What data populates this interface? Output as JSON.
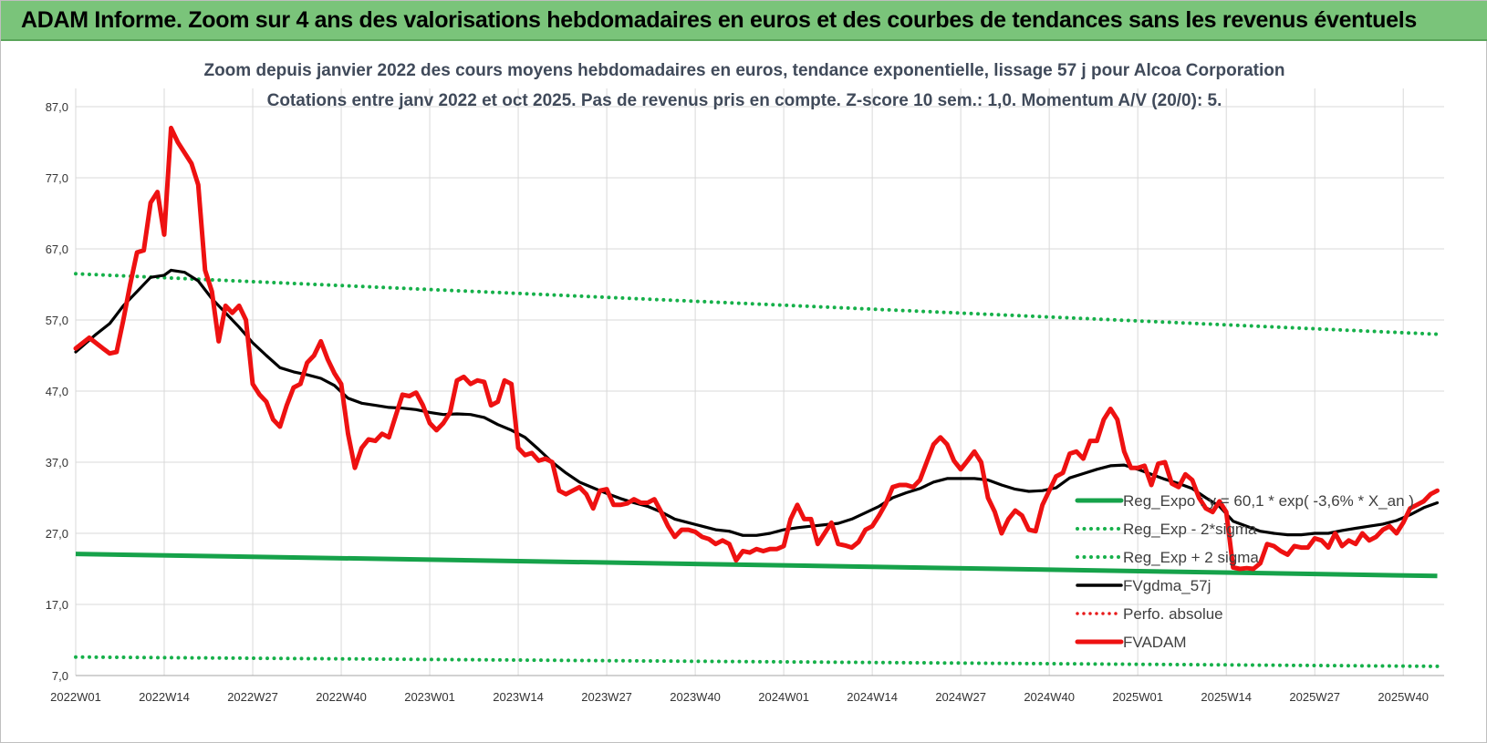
{
  "header": {
    "title": "ADAM Informe. Zoom sur 4 ans des valorisations hebdomadaires en euros et des courbes de tendances sans les revenus éventuels"
  },
  "chart_data": {
    "type": "line",
    "title": [
      "Zoom depuis janvier 2022 des cours moyens hebdomadaires en euros, tendance exponentielle, lissage 57 j pour Alcoa Corporation",
      "Cotations entre janv 2022 et oct 2025. Pas de revenus pris en compte. Z-score 10 sem.: 1,0. Momentum A/V (20/0): 5."
    ],
    "xlabel": "",
    "ylabel": "",
    "ylim": [
      7.0,
      87.0
    ],
    "y_ticks": [
      "7,0",
      "17,0",
      "27,0",
      "37,0",
      "47,0",
      "57,0",
      "67,0",
      "77,0",
      "87,0"
    ],
    "x_ticks": [
      "2022W01",
      "2022W14",
      "2022W27",
      "2022W40",
      "2023W01",
      "2023W14",
      "2023W27",
      "2023W40",
      "2024W01",
      "2024W14",
      "2024W27",
      "2024W40",
      "2025W01",
      "2025W14",
      "2025W27",
      "2025W40"
    ],
    "x_range_weeks": [
      0,
      201
    ],
    "grid": true,
    "legend_position": "right",
    "colors": {
      "fvadam": "#ee1111",
      "fvgdma": "#000000",
      "reg": "#16a24a",
      "sigma": "#16b04a",
      "perfo": "#e81a1a",
      "grid": "#d9d9d9"
    },
    "legend": [
      {
        "label": "Reg_Expo : y = 60,1 * exp( -3,6% *  X_an )",
        "style": "solid-green"
      },
      {
        "label": "Reg_Exp - 2*sigma",
        "style": "dotted-green"
      },
      {
        "label": "Reg_Exp + 2 sigma",
        "style": "dotted-green"
      },
      {
        "label": "FVgdma_57j",
        "style": "solid-black"
      },
      {
        "label": "Perfo. absolue",
        "style": "dotted-red"
      },
      {
        "label": "FVADAM",
        "style": "solid-red"
      }
    ],
    "series": [
      {
        "name": "FVADAM",
        "points": [
          [
            0,
            53
          ],
          [
            2,
            54.5
          ],
          [
            4,
            53
          ],
          [
            5,
            52.3
          ],
          [
            6,
            52.5
          ],
          [
            7,
            57
          ],
          [
            8,
            62
          ],
          [
            9,
            66.5
          ],
          [
            10,
            66.8
          ],
          [
            11,
            73.5
          ],
          [
            12,
            75
          ],
          [
            13,
            69
          ],
          [
            14,
            84
          ],
          [
            15,
            82
          ],
          [
            16,
            80.5
          ],
          [
            17,
            79
          ],
          [
            18,
            76
          ],
          [
            19,
            64
          ],
          [
            20,
            61
          ],
          [
            21,
            54
          ],
          [
            22,
            59
          ],
          [
            23,
            58
          ],
          [
            24,
            59
          ],
          [
            25,
            57
          ],
          [
            26,
            48
          ],
          [
            27,
            46.5
          ],
          [
            28,
            45.5
          ],
          [
            29,
            43
          ],
          [
            30,
            42
          ],
          [
            31,
            45
          ],
          [
            32,
            47.5
          ],
          [
            33,
            48
          ],
          [
            34,
            51
          ],
          [
            35,
            52
          ],
          [
            36,
            54
          ],
          [
            37,
            51.5
          ],
          [
            38,
            49.5
          ],
          [
            39,
            48
          ],
          [
            40,
            41
          ],
          [
            41,
            36.2
          ],
          [
            42,
            39
          ],
          [
            43,
            40.2
          ],
          [
            44,
            40
          ],
          [
            45,
            41
          ],
          [
            46,
            40.5
          ],
          [
            47,
            43.5
          ],
          [
            48,
            46.5
          ],
          [
            49,
            46.3
          ],
          [
            50,
            46.8
          ],
          [
            51,
            45
          ],
          [
            52,
            42.5
          ],
          [
            53,
            41.5
          ],
          [
            54,
            42.5
          ],
          [
            55,
            44
          ],
          [
            56,
            48.5
          ],
          [
            57,
            49
          ],
          [
            58,
            48
          ],
          [
            59,
            48.5
          ],
          [
            60,
            48.3
          ],
          [
            61,
            45
          ],
          [
            62,
            45.5
          ],
          [
            63,
            48.5
          ],
          [
            64,
            48
          ],
          [
            65,
            39
          ],
          [
            66,
            38
          ],
          [
            67,
            38.3
          ],
          [
            68,
            37.2
          ],
          [
            69,
            37.5
          ],
          [
            70,
            37
          ],
          [
            71,
            33
          ],
          [
            72,
            32.5
          ],
          [
            73,
            33
          ],
          [
            74,
            33.5
          ],
          [
            75,
            32.5
          ],
          [
            76,
            30.5
          ],
          [
            77,
            33
          ],
          [
            78,
            33.2
          ],
          [
            79,
            31
          ],
          [
            80,
            31
          ],
          [
            81,
            31.2
          ],
          [
            82,
            31.8
          ],
          [
            83,
            31.3
          ],
          [
            84,
            31.3
          ],
          [
            85,
            31.8
          ],
          [
            86,
            30
          ],
          [
            87,
            28
          ],
          [
            88,
            26.5
          ],
          [
            89,
            27.5
          ],
          [
            90,
            27.5
          ],
          [
            91,
            27.2
          ],
          [
            92,
            26.5
          ],
          [
            93,
            26.2
          ],
          [
            94,
            25.5
          ],
          [
            95,
            26
          ],
          [
            96,
            25.5
          ],
          [
            97,
            23.2
          ],
          [
            98,
            24.5
          ],
          [
            99,
            24.3
          ],
          [
            100,
            24.8
          ],
          [
            101,
            24.5
          ],
          [
            102,
            24.8
          ],
          [
            103,
            24.8
          ],
          [
            104,
            25.2
          ],
          [
            105,
            29
          ],
          [
            106,
            31
          ],
          [
            107,
            29
          ],
          [
            108,
            29
          ],
          [
            109,
            25.5
          ],
          [
            110,
            27
          ],
          [
            111,
            28.5
          ],
          [
            112,
            25.5
          ],
          [
            113,
            25.3
          ],
          [
            114,
            25
          ],
          [
            115,
            25.8
          ],
          [
            116,
            27.5
          ],
          [
            117,
            28
          ],
          [
            118,
            29.5
          ],
          [
            119,
            31.2
          ],
          [
            120,
            33.5
          ],
          [
            121,
            33.8
          ],
          [
            122,
            33.8
          ],
          [
            123,
            33.5
          ],
          [
            124,
            34.5
          ],
          [
            125,
            37
          ],
          [
            126,
            39.5
          ],
          [
            127,
            40.5
          ],
          [
            128,
            39.5
          ],
          [
            129,
            37.2
          ],
          [
            130,
            36
          ],
          [
            131,
            37.2
          ],
          [
            132,
            38.5
          ],
          [
            133,
            37
          ],
          [
            134,
            32
          ],
          [
            135,
            30
          ],
          [
            136,
            27
          ],
          [
            137,
            29
          ],
          [
            138,
            30.2
          ],
          [
            139,
            29.5
          ],
          [
            140,
            27.5
          ],
          [
            141,
            27.3
          ],
          [
            142,
            31
          ],
          [
            143,
            33
          ],
          [
            144,
            35
          ],
          [
            145,
            35.5
          ],
          [
            146,
            38.2
          ],
          [
            147,
            38.5
          ],
          [
            148,
            37.5
          ],
          [
            149,
            40
          ],
          [
            150,
            40
          ],
          [
            151,
            43
          ],
          [
            152,
            44.5
          ],
          [
            153,
            43
          ],
          [
            154,
            38.5
          ],
          [
            155,
            36.2
          ],
          [
            156,
            36.2
          ],
          [
            157,
            36.5
          ],
          [
            158,
            33.8
          ],
          [
            159,
            36.8
          ],
          [
            160,
            37
          ],
          [
            161,
            34
          ],
          [
            162,
            33.5
          ],
          [
            163,
            35.3
          ],
          [
            164,
            34.5
          ],
          [
            165,
            32
          ],
          [
            166,
            30.5
          ],
          [
            167,
            30
          ],
          [
            168,
            31.5
          ],
          [
            169,
            30
          ],
          [
            170,
            22.2
          ],
          [
            171,
            22
          ],
          [
            172,
            22.1
          ],
          [
            173,
            22
          ],
          [
            174,
            22.8
          ],
          [
            175,
            25.5
          ],
          [
            176,
            25.2
          ],
          [
            177,
            24.5
          ],
          [
            178,
            24
          ],
          [
            179,
            25.2
          ],
          [
            180,
            25
          ],
          [
            181,
            25
          ],
          [
            182,
            26.3
          ],
          [
            183,
            26
          ],
          [
            184,
            25
          ],
          [
            185,
            27
          ],
          [
            186,
            25.2
          ],
          [
            187,
            26
          ],
          [
            188,
            25.5
          ],
          [
            189,
            27
          ],
          [
            190,
            26
          ],
          [
            191,
            26.5
          ],
          [
            192,
            27.5
          ],
          [
            193,
            28
          ],
          [
            194,
            27
          ],
          [
            195,
            28.5
          ],
          [
            196,
            30.5
          ],
          [
            197,
            31
          ],
          [
            198,
            31.5
          ],
          [
            199,
            32.5
          ],
          [
            200,
            33
          ]
        ]
      },
      {
        "name": "FVgdma_57j",
        "points": [
          [
            0,
            52.5
          ],
          [
            3,
            55
          ],
          [
            5,
            56.5
          ],
          [
            7,
            59
          ],
          [
            9,
            61
          ],
          [
            11,
            63
          ],
          [
            13,
            63.3
          ],
          [
            14,
            64
          ],
          [
            16,
            63.7
          ],
          [
            18,
            62.5
          ],
          [
            20,
            60
          ],
          [
            22,
            58
          ],
          [
            24,
            56
          ],
          [
            26,
            53.8
          ],
          [
            28,
            52
          ],
          [
            30,
            50.3
          ],
          [
            32,
            49.7
          ],
          [
            34,
            49.3
          ],
          [
            36,
            48.8
          ],
          [
            38,
            47.8
          ],
          [
            40,
            46
          ],
          [
            42,
            45.3
          ],
          [
            44,
            45
          ],
          [
            46,
            44.7
          ],
          [
            48,
            44.6
          ],
          [
            50,
            44.4
          ],
          [
            52,
            44
          ],
          [
            54,
            43.7
          ],
          [
            56,
            43.8
          ],
          [
            58,
            43.7
          ],
          [
            60,
            43.3
          ],
          [
            62,
            42.3
          ],
          [
            64,
            41.5
          ],
          [
            66,
            40.5
          ],
          [
            68,
            38.8
          ],
          [
            70,
            37
          ],
          [
            72,
            35.5
          ],
          [
            74,
            34.2
          ],
          [
            76,
            33.4
          ],
          [
            78,
            32.6
          ],
          [
            80,
            31.9
          ],
          [
            82,
            31.3
          ],
          [
            84,
            30.8
          ],
          [
            86,
            30
          ],
          [
            88,
            29
          ],
          [
            90,
            28.5
          ],
          [
            92,
            28
          ],
          [
            94,
            27.5
          ],
          [
            96,
            27.3
          ],
          [
            98,
            26.7
          ],
          [
            100,
            26.7
          ],
          [
            102,
            27
          ],
          [
            104,
            27.5
          ],
          [
            106,
            27.8
          ],
          [
            108,
            28
          ],
          [
            110,
            28.2
          ],
          [
            112,
            28.4
          ],
          [
            114,
            29
          ],
          [
            116,
            29.9
          ],
          [
            118,
            30.8
          ],
          [
            120,
            32
          ],
          [
            122,
            32.7
          ],
          [
            124,
            33.3
          ],
          [
            126,
            34.2
          ],
          [
            128,
            34.7
          ],
          [
            130,
            34.7
          ],
          [
            132,
            34.7
          ],
          [
            134,
            34.5
          ],
          [
            136,
            33.8
          ],
          [
            138,
            33.2
          ],
          [
            140,
            32.9
          ],
          [
            142,
            33
          ],
          [
            144,
            33.4
          ],
          [
            146,
            34.8
          ],
          [
            148,
            35.4
          ],
          [
            150,
            36
          ],
          [
            152,
            36.5
          ],
          [
            154,
            36.6
          ],
          [
            156,
            36
          ],
          [
            158,
            35.3
          ],
          [
            160,
            34.6
          ],
          [
            162,
            34
          ],
          [
            164,
            33.3
          ],
          [
            166,
            32
          ],
          [
            168,
            30.8
          ],
          [
            170,
            28.7
          ],
          [
            172,
            28
          ],
          [
            174,
            27.3
          ],
          [
            176,
            27
          ],
          [
            178,
            26.8
          ],
          [
            180,
            26.8
          ],
          [
            182,
            27
          ],
          [
            184,
            27
          ],
          [
            186,
            27.4
          ],
          [
            188,
            27.7
          ],
          [
            190,
            28
          ],
          [
            192,
            28.3
          ],
          [
            194,
            28.8
          ],
          [
            196,
            29.6
          ],
          [
            198,
            30.6
          ],
          [
            200,
            31.3
          ]
        ]
      },
      {
        "name": "Reg_Expo",
        "points": [
          [
            0,
            24.1
          ],
          [
            200,
            21
          ]
        ]
      },
      {
        "name": "Reg_Exp - 2*sigma",
        "points": [
          [
            0,
            9.6
          ],
          [
            200,
            8.3
          ]
        ]
      },
      {
        "name": "Reg_Exp + 2 sigma",
        "points": [
          [
            0,
            63.5
          ],
          [
            200,
            55
          ]
        ]
      }
    ]
  }
}
